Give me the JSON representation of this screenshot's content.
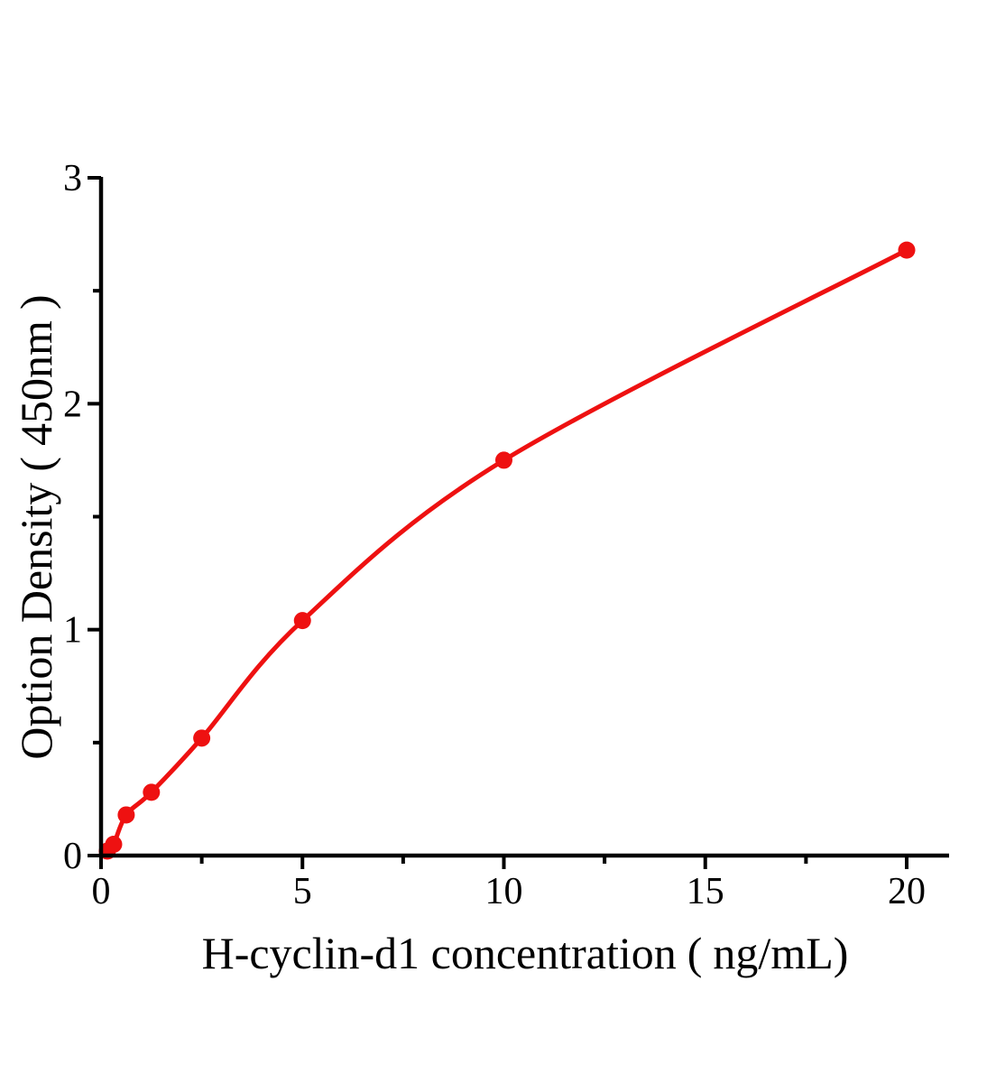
{
  "figure": {
    "background_color": "#ffffff",
    "axis_color": "#000000",
    "text_color": "#000000"
  },
  "chart_data": {
    "type": "line",
    "title": "",
    "xlabel": "H-cyclin-d1 concentration（ng/mL)",
    "ylabel": "Option Density（450nm）",
    "x": [
      0.156,
      0.313,
      0.625,
      1.25,
      2.5,
      5,
      10,
      20
    ],
    "y": [
      0.02,
      0.05,
      0.18,
      0.28,
      0.52,
      1.04,
      1.75,
      2.68
    ],
    "curve_start": [
      0,
      0
    ],
    "xlim": [
      0,
      21
    ],
    "ylim": [
      0,
      3
    ],
    "x_major_ticks": [
      0,
      5,
      10,
      15,
      20
    ],
    "x_minor_ticks": [
      2.5,
      7.5,
      12.5,
      17.5
    ],
    "y_major_ticks": [
      0,
      1,
      2,
      3
    ],
    "y_minor_ticks": [
      0.5,
      1.5,
      2.5
    ],
    "line_color": "#ee1111",
    "marker_color": "#ee1111",
    "marker_style": "circle",
    "grid": false,
    "legend": null
  }
}
